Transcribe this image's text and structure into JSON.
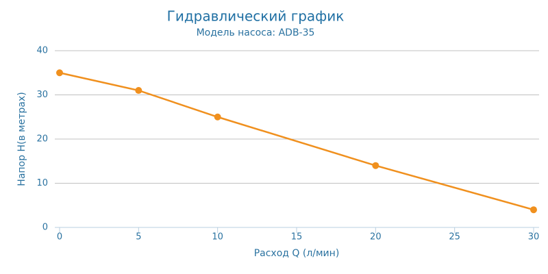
{
  "chart_data": {
    "type": "line",
    "title": "Гидравлический график",
    "subtitle": "Модель насоса: ADB-35",
    "x_label": "Расход Q (л/мин)",
    "y_label": "Напор Н(в метрах)",
    "x": [
      0,
      5,
      10,
      20,
      30
    ],
    "series": [
      {
        "values": [
          35,
          31,
          25,
          14,
          4
        ],
        "color": "#f0901e"
      }
    ],
    "xlim": [
      0,
      30
    ],
    "xticks": [
      0,
      5,
      10,
      15,
      20,
      25,
      30
    ],
    "ylim": [
      0,
      40
    ],
    "yticks": [
      0,
      10,
      20,
      30,
      40
    ],
    "grid": true
  }
}
